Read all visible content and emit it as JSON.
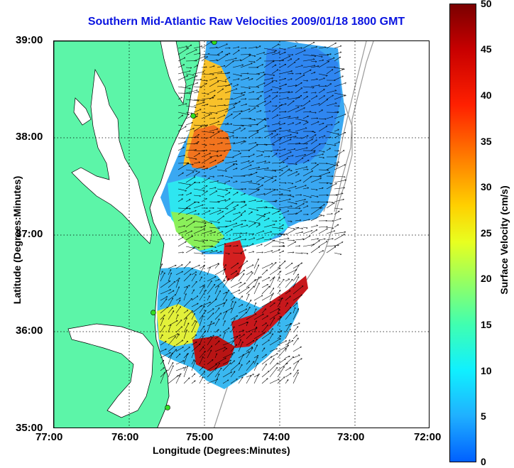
{
  "title": "Southern Mid-Atlantic Raw Velocities 2009/01/18 1800 GMT",
  "axes": {
    "xlabel": "Longitude (Degrees:Minutes)",
    "ylabel": "Latitude (Degrees:Minutes)",
    "xticks": [
      "77:00",
      "76:00",
      "75:00",
      "74:00",
      "73:00",
      "72:00"
    ],
    "yticks": [
      "39:00",
      "38:00",
      "37:00",
      "36:00",
      "35:00"
    ],
    "xlim": [
      -77,
      -72
    ],
    "ylim": [
      35,
      39
    ],
    "grid": true
  },
  "colorbar": {
    "label": "Surface Velocity (cm/s)",
    "ticks": [
      "50",
      "45",
      "40",
      "35",
      "30",
      "25",
      "20",
      "15",
      "10",
      "5",
      "0"
    ],
    "min": 0,
    "max": 50
  },
  "colors": {
    "land": "#5cf5a8",
    "title": "#0a14e0",
    "station": "#33dd22"
  },
  "stations": [
    {
      "lon": -74.87,
      "lat": 38.99
    },
    {
      "lon": -75.15,
      "lat": 38.23
    },
    {
      "lon": -75.68,
      "lat": 36.2
    },
    {
      "lon": -75.49,
      "lat": 35.22
    }
  ]
}
